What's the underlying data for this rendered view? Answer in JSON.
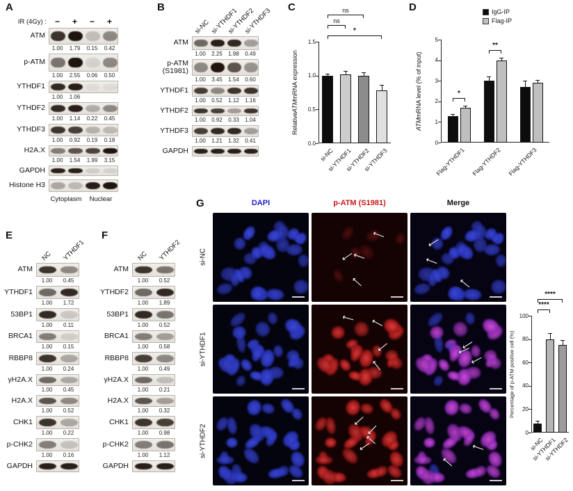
{
  "panels": {
    "A": {
      "label": "A",
      "treatment_label": "IR (4Gy) :",
      "lane_signs": [
        "−",
        "+",
        "−",
        "+"
      ],
      "rows": [
        {
          "label": "ATM",
          "values": [
            "1.00",
            "1.79",
            "0.15",
            "0.42"
          ],
          "bands": [
            0.85,
            1,
            0.2,
            0.45
          ],
          "h": 24
        },
        {
          "label": "p-ATM",
          "values": [
            "1.00",
            "2.55",
            "0.06",
            "0.50"
          ],
          "bands": [
            0.55,
            1,
            0.1,
            0.45
          ],
          "h": 26
        },
        {
          "label": "YTHDF1",
          "values": [
            "1.00",
            "1.06"
          ],
          "bands": [
            0.9,
            0.95,
            0.05,
            0.05
          ],
          "h": 18
        },
        {
          "label": "YTHDF2",
          "values": [
            "1.00",
            "1.14",
            "0.22",
            "0.45"
          ],
          "bands": [
            0.9,
            0.95,
            0.28,
            0.45
          ],
          "h": 18
        },
        {
          "label": "YTHDF3",
          "values": [
            "1.00",
            "0.92",
            "0.19",
            "0.18"
          ],
          "bands": [
            0.85,
            0.8,
            0.25,
            0.22
          ],
          "h": 18
        },
        {
          "label": "H2A.X",
          "values": [
            "1.00",
            "1.54",
            "1.99",
            "3.15"
          ],
          "bands": [
            0.5,
            0.7,
            0.78,
            1
          ],
          "h": 16
        },
        {
          "label": "GAPDH",
          "values": [],
          "bands": [
            0.95,
            0.95,
            0.12,
            0.1
          ],
          "h": 15,
          "gap": 4
        },
        {
          "label": "Histone H3",
          "values": [],
          "bands": [
            0.3,
            0.22,
            0.95,
            1
          ],
          "h": 18,
          "gap": 4
        }
      ],
      "fraction_labels": [
        "Cytoplasm",
        "Nuclear"
      ]
    },
    "B": {
      "label": "B",
      "col_headers": [
        "si-NC",
        "si-YTHDF1",
        "si-YTHDF2",
        "si-YTHDF3"
      ],
      "rows": [
        {
          "label": "ATM",
          "values": [
            "1.00",
            "2.25",
            "1.98",
            "0.49"
          ],
          "bands": [
            0.6,
            0.95,
            0.9,
            0.35
          ],
          "h": 20
        },
        {
          "label": "p-ATM\n(S1981)",
          "values": [
            "1.00",
            "3.45",
            "1.54",
            "0.60"
          ],
          "bands": [
            0.45,
            1,
            0.7,
            0.4
          ],
          "h": 24
        },
        {
          "label": "YTHDF1",
          "values": [
            "1.00",
            "0.52",
            "1.12",
            "1.16"
          ],
          "bands": [
            0.8,
            0.45,
            0.85,
            0.85
          ],
          "h": 17
        },
        {
          "label": "YTHDF2",
          "values": [
            "1.00",
            "0.92",
            "0.33",
            "1.04"
          ],
          "bands": [
            0.85,
            0.8,
            0.35,
            0.85
          ],
          "h": 15
        },
        {
          "label": "YTHDF3",
          "values": [
            "1.00",
            "1.21",
            "1.32",
            "0.41"
          ],
          "bands": [
            0.8,
            0.9,
            0.9,
            0.35
          ],
          "h": 17
        },
        {
          "label": "GAPDH",
          "values": [],
          "bands": [
            0.95,
            0.95,
            0.95,
            0.95
          ],
          "h": 15
        }
      ]
    },
    "C": {
      "label": "C"
    },
    "D": {
      "label": "D"
    },
    "E": {
      "label": "E",
      "col_headers": [
        "NC",
        "YTHDF1"
      ],
      "rows": [
        {
          "label": "ATM",
          "values": [
            "1.00",
            "0.45"
          ],
          "bands": [
            0.85,
            0.45
          ],
          "h": 20
        },
        {
          "label": "YTHDF1",
          "values": [
            "1.00",
            "1.72"
          ],
          "bands": [
            0.6,
            0.9
          ],
          "h": 19
        },
        {
          "label": "53BP1",
          "values": [
            "1.00",
            "0.11"
          ],
          "bands": [
            0.9,
            0.15
          ],
          "h": 19
        },
        {
          "label": "BRCA1",
          "values": [
            "1.00",
            "0.15"
          ],
          "bands": [
            0.5,
            0.12
          ],
          "h": 18
        },
        {
          "label": "RBBP8",
          "values": [
            "1.00",
            "0.24"
          ],
          "bands": [
            0.85,
            0.3
          ],
          "h": 19
        },
        {
          "label": "γH2A.X",
          "values": [
            "1.00",
            "0.45"
          ],
          "bands": [
            0.6,
            0.3
          ],
          "h": 17
        },
        {
          "label": "H2A.X",
          "values": [
            "1.00",
            "0.52"
          ],
          "bands": [
            0.7,
            0.45
          ],
          "h": 17
        },
        {
          "label": "CHK1",
          "values": [
            "1.00",
            "0.22"
          ],
          "bands": [
            0.85,
            0.3
          ],
          "h": 19
        },
        {
          "label": "p-CHK2",
          "values": [
            "1.00",
            "0.16"
          ],
          "bands": [
            0.5,
            0.18
          ],
          "h": 19
        },
        {
          "label": "GAPDH",
          "values": [],
          "bands": [
            0.95,
            0.95
          ],
          "h": 17
        }
      ]
    },
    "F": {
      "label": "F",
      "col_headers": [
        "NC",
        "YTHDF2"
      ],
      "rows": [
        {
          "label": "ATM",
          "values": [
            "1.00",
            "0.52"
          ],
          "bands": [
            0.85,
            0.55
          ],
          "h": 20
        },
        {
          "label": "YTHDF2",
          "values": [
            "1.00",
            "1.89"
          ],
          "bands": [
            0.6,
            0.9
          ],
          "h": 19
        },
        {
          "label": "53BP1",
          "values": [
            "1.00",
            "0.52"
          ],
          "bands": [
            0.9,
            0.55
          ],
          "h": 19
        },
        {
          "label": "BRCA1",
          "values": [
            "1.00",
            "0.58"
          ],
          "bands": [
            0.5,
            0.35
          ],
          "h": 18
        },
        {
          "label": "RBBP8",
          "values": [
            "1.00",
            "0.49"
          ],
          "bands": [
            0.8,
            0.45
          ],
          "h": 19
        },
        {
          "label": "γH2A.X",
          "values": [
            "1.00",
            "0.21"
          ],
          "bands": [
            0.6,
            0.2
          ],
          "h": 17
        },
        {
          "label": "H2A.X",
          "values": [
            "1.00",
            "0.32"
          ],
          "bands": [
            0.7,
            0.35
          ],
          "h": 17
        },
        {
          "label": "CHK1",
          "values": [
            "1.00",
            "0.98"
          ],
          "bands": [
            0.85,
            0.8
          ],
          "h": 19
        },
        {
          "label": "p-CHK2",
          "values": [
            "1.00",
            "1.12"
          ],
          "bands": [
            0.5,
            0.55
          ],
          "h": 19
        },
        {
          "label": "GAPDH",
          "values": [],
          "bands": [
            0.95,
            0.95
          ],
          "h": 17
        }
      ]
    },
    "G": {
      "label": "G",
      "col_headers": [
        {
          "text": "DAPI",
          "color": "#2222cc"
        },
        {
          "text": "p-ATM (S1981)",
          "color": "#cc1a1a"
        },
        {
          "text": "Merge",
          "color": "#111111"
        }
      ],
      "colors": {
        "dapi": "#3c49d8",
        "p_atm": "#e04040",
        "merge_positive": "#d44fd8"
      },
      "rows": [
        {
          "label": "si-NC",
          "p_atm_positive": false,
          "arrows": [
            0,
            4,
            3
          ]
        },
        {
          "label": "si-YTHDF1",
          "p_atm_positive": true,
          "arrows": [
            0,
            4,
            3
          ]
        },
        {
          "label": "si-YTHDF2",
          "p_atm_positive": true,
          "arrows": [
            0,
            4,
            2
          ]
        }
      ]
    }
  },
  "chart_data": [
    {
      "panel": "C",
      "type": "bar",
      "categories": [
        "si-NC",
        "si-YTHDF1",
        "si-YTHDF2",
        "si-YTHDF3"
      ],
      "values": [
        1.0,
        1.02,
        1.0,
        0.78
      ],
      "errors": [
        0.03,
        0.05,
        0.05,
        0.08
      ],
      "bar_colors": [
        "#0d0d0d",
        "#cccccc",
        "#8c8c8c",
        "#e0e0e0"
      ],
      "ylabel": "Relative ATM mRNA expression",
      "ylabel_italic": "ATM",
      "ylim": [
        0,
        1.5
      ],
      "yticks": [
        "0.0",
        "0.5",
        "1.0",
        "1.5"
      ],
      "legend_position": "none",
      "grid": false,
      "comparisons": [
        {
          "from": 0,
          "to": 3,
          "label": "*",
          "level": 0
        },
        {
          "from": 0,
          "to": 1,
          "label": "ns",
          "level": 1
        },
        {
          "from": 0,
          "to": 2,
          "label": "ns",
          "level": 2
        }
      ]
    },
    {
      "panel": "D",
      "type": "grouped-bar",
      "categories": [
        "Flag-YTHDF1",
        "Flag-YTHDF2",
        "Flag-YTHDF3"
      ],
      "series": [
        {
          "name": "IgG-IP",
          "color": "#0d0d0d",
          "values": [
            1.3,
            3.0,
            2.7
          ],
          "errors": [
            0.08,
            0.2,
            0.3
          ]
        },
        {
          "name": "Flag-IP",
          "color": "#bfbfbf",
          "values": [
            1.7,
            4.0,
            2.9
          ],
          "errors": [
            0.08,
            0.12,
            0.15
          ]
        }
      ],
      "ylabel": "ATM mRNA level (% of input)",
      "ylabel_italic": "ATM",
      "ylim": [
        0,
        5
      ],
      "yticks": [
        "0",
        "1",
        "2",
        "3",
        "4",
        "5"
      ],
      "legend_position": "top",
      "grid": false,
      "comparisons": [
        {
          "category": 0,
          "label": "*",
          "y": 2.15
        },
        {
          "category": 1,
          "label": "**",
          "y": 4.5
        }
      ]
    },
    {
      "panel": "G",
      "type": "bar",
      "categories": [
        "si-NC",
        "si-YTHDF1",
        "si-YTHDF2"
      ],
      "values": [
        8,
        80,
        75
      ],
      "errors": [
        2,
        5,
        4
      ],
      "bar_colors": [
        "#0d0d0d",
        "#b5b5b5",
        "#9c9c9c"
      ],
      "ylabel": "Percentage of p-ATM positive cell (%)",
      "ylabel_italic": "",
      "ylim": [
        0,
        100
      ],
      "yticks": [
        "0",
        "20",
        "40",
        "60",
        "80",
        "100"
      ],
      "legend_position": "none",
      "grid": false,
      "comparisons": [
        {
          "from": 0,
          "to": 1,
          "label": "****",
          "level": 0
        },
        {
          "from": 0,
          "to": 2,
          "label": "****",
          "level": 1
        }
      ]
    }
  ]
}
